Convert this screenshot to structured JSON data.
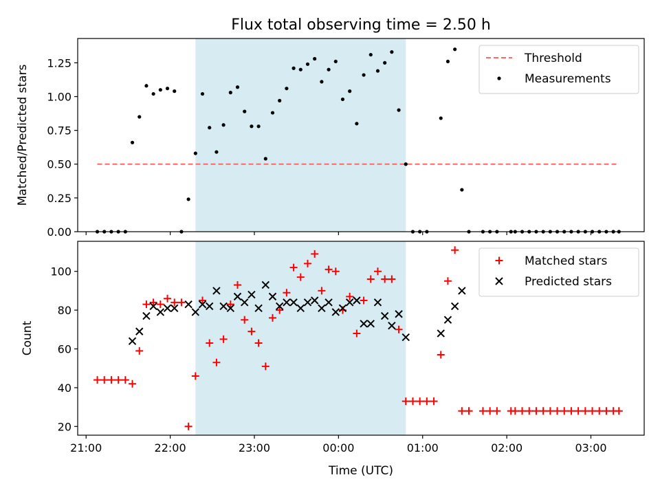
{
  "figure": {
    "title": "Flux total observing time = 2.50 h",
    "xlabel": "Time (UTC)",
    "x_ticks": [
      "21:00",
      "22:00",
      "23:00",
      "00:00",
      "01:00",
      "02:00",
      "03:00"
    ],
    "shaded_window": {
      "start": "22:18",
      "end": "00:48",
      "color": "#add8e6"
    }
  },
  "chart_data": [
    {
      "type": "scatter",
      "ylabel": "Matched/Predicted stars",
      "xlim": [
        "20:54",
        "03:38"
      ],
      "ylim": [
        0,
        1.43
      ],
      "y_ticks": [
        "0.00",
        "0.25",
        "0.50",
        "0.75",
        "1.00",
        "1.25"
      ],
      "legend_position": "upper right",
      "threshold": {
        "name": "Threshold",
        "value": 0.5,
        "x_range": [
          "21:08",
          "03:20"
        ],
        "color": "#ff6666"
      },
      "series": [
        {
          "name": "Measurements",
          "marker": "dot",
          "color": "#000000",
          "points": [
            [
              "21:08",
              0
            ],
            [
              "21:13",
              0
            ],
            [
              "21:18",
              0
            ],
            [
              "21:23",
              0
            ],
            [
              "21:28",
              0
            ],
            [
              "21:33",
              0.66
            ],
            [
              "21:38",
              0.85
            ],
            [
              "21:43",
              1.08
            ],
            [
              "21:48",
              1.02
            ],
            [
              "21:53",
              1.05
            ],
            [
              "21:58",
              1.06
            ],
            [
              "22:03",
              1.04
            ],
            [
              "22:08",
              0
            ],
            [
              "22:13",
              0.24
            ],
            [
              "22:18",
              0.58
            ],
            [
              "22:23",
              1.02
            ],
            [
              "22:28",
              0.77
            ],
            [
              "22:33",
              0.59
            ],
            [
              "22:38",
              0.79
            ],
            [
              "22:43",
              1.03
            ],
            [
              "22:48",
              1.07
            ],
            [
              "22:53",
              0.89
            ],
            [
              "22:58",
              0.78
            ],
            [
              "23:03",
              0.78
            ],
            [
              "23:08",
              0.54
            ],
            [
              "23:13",
              0.88
            ],
            [
              "23:18",
              0.97
            ],
            [
              "23:23",
              1.06
            ],
            [
              "23:28",
              1.21
            ],
            [
              "23:33",
              1.2
            ],
            [
              "23:38",
              1.24
            ],
            [
              "23:43",
              1.28
            ],
            [
              "23:48",
              1.11
            ],
            [
              "23:53",
              1.2
            ],
            [
              "23:58",
              1.26
            ],
            [
              "00:03",
              0.98
            ],
            [
              "00:08",
              1.04
            ],
            [
              "00:13",
              0.8
            ],
            [
              "00:18",
              1.16
            ],
            [
              "00:23",
              1.31
            ],
            [
              "00:28",
              1.19
            ],
            [
              "00:33",
              1.25
            ],
            [
              "00:38",
              1.33
            ],
            [
              "00:43",
              0.9
            ],
            [
              "00:48",
              0.5
            ],
            [
              "00:53",
              0
            ],
            [
              "00:58",
              0
            ],
            [
              "01:03",
              0
            ],
            [
              "01:13",
              0.84
            ],
            [
              "01:18",
              1.26
            ],
            [
              "01:23",
              1.35
            ],
            [
              "01:28",
              0.31
            ],
            [
              "01:33",
              0
            ],
            [
              "01:43",
              0
            ],
            [
              "01:48",
              0
            ],
            [
              "01:53",
              0
            ],
            [
              "02:03",
              0
            ],
            [
              "02:06",
              0
            ],
            [
              "02:11",
              0
            ],
            [
              "02:16",
              0
            ],
            [
              "02:21",
              0
            ],
            [
              "02:26",
              0
            ],
            [
              "02:31",
              0
            ],
            [
              "02:36",
              0
            ],
            [
              "02:41",
              0
            ],
            [
              "02:46",
              0
            ],
            [
              "02:51",
              0
            ],
            [
              "02:56",
              0
            ],
            [
              "03:01",
              0
            ],
            [
              "03:06",
              0
            ],
            [
              "03:11",
              0
            ],
            [
              "03:16",
              0
            ],
            [
              "03:20",
              0
            ]
          ]
        }
      ]
    },
    {
      "type": "scatter",
      "ylabel": "Count",
      "xlim": [
        "20:54",
        "03:38"
      ],
      "ylim": [
        15.5,
        115.5
      ],
      "y_ticks": [
        "20",
        "40",
        "60",
        "80",
        "100"
      ],
      "legend_position": "upper right",
      "series": [
        {
          "name": "Matched stars",
          "marker": "plus",
          "color": "#ff0000",
          "points": [
            [
              "21:08",
              44
            ],
            [
              "21:13",
              44
            ],
            [
              "21:18",
              44
            ],
            [
              "21:23",
              44
            ],
            [
              "21:28",
              44
            ],
            [
              "21:33",
              42
            ],
            [
              "21:38",
              59
            ],
            [
              "21:43",
              83
            ],
            [
              "21:48",
              84
            ],
            [
              "21:53",
              83
            ],
            [
              "21:58",
              86
            ],
            [
              "22:03",
              84
            ],
            [
              "22:08",
              84
            ],
            [
              "22:13",
              20
            ],
            [
              "22:18",
              46
            ],
            [
              "22:23",
              85
            ],
            [
              "22:28",
              63
            ],
            [
              "22:33",
              53
            ],
            [
              "22:38",
              65
            ],
            [
              "22:43",
              83
            ],
            [
              "22:48",
              93
            ],
            [
              "22:53",
              75
            ],
            [
              "22:58",
              69
            ],
            [
              "23:03",
              63
            ],
            [
              "23:08",
              51
            ],
            [
              "23:13",
              76
            ],
            [
              "23:18",
              80
            ],
            [
              "23:23",
              89
            ],
            [
              "23:28",
              102
            ],
            [
              "23:33",
              97
            ],
            [
              "23:38",
              104
            ],
            [
              "23:43",
              109
            ],
            [
              "23:48",
              90
            ],
            [
              "23:53",
              101
            ],
            [
              "23:58",
              100
            ],
            [
              "00:03",
              80
            ],
            [
              "00:08",
              87
            ],
            [
              "00:13",
              68
            ],
            [
              "00:18",
              85
            ],
            [
              "00:23",
              96
            ],
            [
              "00:28",
              100
            ],
            [
              "00:33",
              96
            ],
            [
              "00:38",
              96
            ],
            [
              "00:43",
              70
            ],
            [
              "00:48",
              33
            ],
            [
              "00:53",
              33
            ],
            [
              "00:58",
              33
            ],
            [
              "01:03",
              33
            ],
            [
              "01:08",
              33
            ],
            [
              "01:13",
              57
            ],
            [
              "01:18",
              95
            ],
            [
              "01:23",
              111
            ],
            [
              "01:28",
              28
            ],
            [
              "01:33",
              28
            ],
            [
              "01:43",
              28
            ],
            [
              "01:48",
              28
            ],
            [
              "01:53",
              28
            ],
            [
              "02:03",
              28
            ],
            [
              "02:06",
              28
            ],
            [
              "02:11",
              28
            ],
            [
              "02:16",
              28
            ],
            [
              "02:21",
              28
            ],
            [
              "02:26",
              28
            ],
            [
              "02:31",
              28
            ],
            [
              "02:36",
              28
            ],
            [
              "02:41",
              28
            ],
            [
              "02:46",
              28
            ],
            [
              "02:51",
              28
            ],
            [
              "02:56",
              28
            ],
            [
              "03:01",
              28
            ],
            [
              "03:06",
              28
            ],
            [
              "03:11",
              28
            ],
            [
              "03:16",
              28
            ],
            [
              "03:20",
              28
            ]
          ]
        },
        {
          "name": "Predicted stars",
          "marker": "x",
          "color": "#000000",
          "points": [
            [
              "21:33",
              64
            ],
            [
              "21:38",
              69
            ],
            [
              "21:43",
              77
            ],
            [
              "21:48",
              82
            ],
            [
              "21:53",
              79
            ],
            [
              "21:58",
              81
            ],
            [
              "22:03",
              81
            ],
            [
              "22:13",
              83
            ],
            [
              "22:18",
              79
            ],
            [
              "22:23",
              83
            ],
            [
              "22:28",
              82
            ],
            [
              "22:33",
              90
            ],
            [
              "22:38",
              82
            ],
            [
              "22:43",
              81
            ],
            [
              "22:48",
              87
            ],
            [
              "22:53",
              84
            ],
            [
              "22:58",
              88
            ],
            [
              "23:03",
              81
            ],
            [
              "23:08",
              93
            ],
            [
              "23:13",
              87
            ],
            [
              "23:18",
              82
            ],
            [
              "23:23",
              84
            ],
            [
              "23:28",
              84
            ],
            [
              "23:33",
              81
            ],
            [
              "23:38",
              84
            ],
            [
              "23:43",
              85
            ],
            [
              "23:48",
              81
            ],
            [
              "23:53",
              84
            ],
            [
              "23:58",
              79
            ],
            [
              "00:03",
              81
            ],
            [
              "00:08",
              84
            ],
            [
              "00:13",
              85
            ],
            [
              "00:18",
              73
            ],
            [
              "00:23",
              73
            ],
            [
              "00:28",
              84
            ],
            [
              "00:33",
              77
            ],
            [
              "00:38",
              72
            ],
            [
              "00:43",
              78
            ],
            [
              "00:48",
              66
            ],
            [
              "01:13",
              68
            ],
            [
              "01:18",
              75
            ],
            [
              "01:23",
              82
            ],
            [
              "01:28",
              90
            ]
          ]
        }
      ]
    }
  ]
}
